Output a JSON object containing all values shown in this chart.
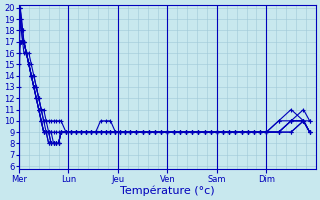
{
  "background_color": "#c8e8ee",
  "line_color": "#0000bb",
  "marker": "+",
  "markersize": 3,
  "linewidth": 0.8,
  "ylim": [
    6,
    20
  ],
  "yticks": [
    6,
    7,
    8,
    9,
    10,
    11,
    12,
    13,
    14,
    15,
    16,
    17,
    18,
    19,
    20
  ],
  "xlabel": "Température (°c)",
  "xlabel_fontsize": 8,
  "tick_fontsize": 6,
  "day_labels": [
    "Mer",
    "Lun",
    "Jeu",
    "Ven",
    "Sam",
    "Dim"
  ],
  "grid_color": "#a0c8d8",
  "series": [
    [
      15,
      19,
      18,
      17,
      16,
      16,
      15,
      14,
      13,
      13,
      12,
      11,
      11,
      10,
      10,
      10,
      10,
      10,
      10,
      10,
      9,
      9,
      9,
      9,
      9,
      9,
      9,
      10,
      10,
      10,
      9,
      9,
      9,
      9,
      9,
      9,
      9,
      9,
      9,
      9,
      9,
      9,
      9,
      9,
      9,
      9,
      9,
      9,
      9,
      9,
      9,
      9,
      9,
      9,
      9,
      9,
      10,
      11,
      10,
      9
    ],
    [
      16,
      20,
      18,
      17,
      17,
      16,
      15,
      14,
      13,
      12,
      11,
      10,
      9,
      9,
      9,
      9,
      9,
      9,
      9,
      9,
      9,
      9,
      9,
      9,
      9,
      9,
      9,
      9,
      9,
      9,
      9,
      9,
      9,
      9,
      9,
      9,
      9,
      9,
      9,
      9,
      9,
      9,
      9,
      9,
      9,
      9,
      9,
      9,
      9,
      9,
      9,
      9,
      9,
      9,
      9,
      9,
      10,
      10,
      10,
      9
    ],
    [
      18,
      20,
      19,
      18,
      17,
      16,
      15,
      14,
      13,
      12,
      11,
      10,
      9,
      9,
      9,
      8,
      8,
      8,
      8,
      9,
      9,
      9,
      9,
      9,
      9,
      9,
      9,
      9,
      9,
      9,
      9,
      9,
      9,
      9,
      9,
      9,
      9,
      9,
      9,
      9,
      9,
      9,
      9,
      9,
      9,
      9,
      9,
      9,
      9,
      9,
      9,
      9,
      9,
      9,
      9,
      9,
      9,
      10,
      10,
      9
    ],
    [
      19,
      20,
      19,
      18,
      17,
      16,
      15,
      14,
      13,
      12,
      11,
      10,
      9,
      9,
      8,
      8,
      8,
      8,
      8,
      9,
      9,
      9,
      9,
      9,
      9,
      9,
      9,
      9,
      9,
      9,
      9,
      9,
      9,
      9,
      9,
      9,
      9,
      9,
      9,
      9,
      9,
      9,
      9,
      9,
      9,
      9,
      9,
      9,
      9,
      9,
      9,
      9,
      9,
      9,
      9,
      9,
      9,
      9,
      10,
      9
    ],
    [
      13,
      17,
      17,
      17,
      17,
      16,
      15,
      14,
      13,
      12,
      11,
      10,
      9,
      9,
      8,
      8,
      8,
      8,
      8,
      9,
      9,
      9,
      9,
      9,
      9,
      9,
      9,
      9,
      9,
      9,
      9,
      9,
      9,
      9,
      9,
      9,
      9,
      9,
      9,
      9,
      9,
      9,
      9,
      9,
      9,
      9,
      9,
      9,
      9,
      9,
      9,
      9,
      9,
      9,
      9,
      9,
      9,
      9,
      10,
      9
    ],
    [
      16,
      17,
      17,
      17,
      17,
      16,
      15,
      14,
      14,
      13,
      12,
      11,
      10,
      9,
      9,
      8,
      8,
      8,
      8,
      9,
      9,
      9,
      9,
      9,
      9,
      9,
      9,
      9,
      9,
      9,
      9,
      9,
      9,
      9,
      9,
      9,
      9,
      9,
      9,
      9,
      9,
      9,
      9,
      9,
      9,
      9,
      9,
      9,
      9,
      9,
      9,
      9,
      9,
      9,
      9,
      9,
      9,
      10,
      10,
      10
    ],
    [
      16,
      17,
      17,
      17,
      17,
      16,
      16,
      15,
      14,
      13,
      12,
      11,
      10,
      10,
      9,
      9,
      8,
      8,
      8,
      9,
      9,
      9,
      9,
      9,
      9,
      9,
      9,
      9,
      9,
      9,
      9,
      9,
      9,
      9,
      9,
      9,
      9,
      9,
      9,
      9,
      9,
      9,
      9,
      9,
      9,
      9,
      9,
      9,
      9,
      9,
      9,
      9,
      9,
      9,
      9,
      9,
      9,
      10,
      11,
      10
    ]
  ],
  "x_positions": [
    0,
    1,
    2,
    3,
    4,
    6,
    8,
    10,
    12,
    14,
    16,
    18,
    20,
    22,
    24,
    26,
    28,
    30,
    32,
    34,
    38,
    42,
    46,
    50,
    54,
    58,
    62,
    66,
    70,
    74,
    78,
    82,
    86,
    90,
    95,
    100,
    105,
    110,
    115,
    120,
    125,
    130,
    135,
    140,
    145,
    150,
    155,
    160,
    165,
    170,
    175,
    180,
    185,
    190,
    195,
    200,
    210,
    220,
    230,
    235
  ],
  "xlim": [
    0,
    240
  ],
  "day_x": [
    0,
    40,
    80,
    120,
    160,
    200
  ]
}
